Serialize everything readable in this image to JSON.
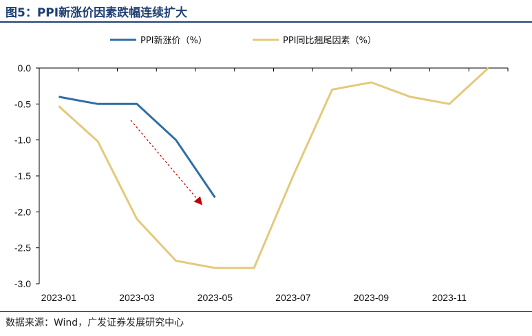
{
  "header": {
    "title": "图5：PPI新涨价因素跌幅连续扩大"
  },
  "footer": {
    "source": "数据来源：Wind，广发证券发展研究中心"
  },
  "chart_data": {
    "type": "line",
    "title": "图5：PPI新涨价因素跌幅连续扩大",
    "categories": [
      "2023-01",
      "2023-02",
      "2023-03",
      "2023-04",
      "2023-05",
      "2023-06",
      "2023-07",
      "2023-08",
      "2023-09",
      "2023-10",
      "2023-11",
      "2023-12"
    ],
    "x_tick_labels": [
      "2023-01",
      "2023-03",
      "2023-05",
      "2023-07",
      "2023-09",
      "2023-11"
    ],
    "y_tick_labels": [
      "0.0",
      "-0.5",
      "-1.0",
      "-1.5",
      "-2.0",
      "-2.5",
      "-3.0"
    ],
    "ylim": [
      -3.0,
      0.0
    ],
    "grid": false,
    "legend_position": "top",
    "series": [
      {
        "name": "PPI新涨价（%）",
        "color": "#2e6da4",
        "values": [
          -0.4,
          -0.5,
          -0.5,
          -1.0,
          -1.8,
          null,
          null,
          null,
          null,
          null,
          null,
          null
        ]
      },
      {
        "name": "PPI同比翘尾因素（%）",
        "color": "#e3c97a",
        "values": [
          -0.53,
          -1.02,
          -2.1,
          -2.68,
          -2.78,
          -2.78,
          -1.5,
          -0.3,
          -0.2,
          -0.4,
          -0.5,
          0.0
        ]
      }
    ]
  }
}
